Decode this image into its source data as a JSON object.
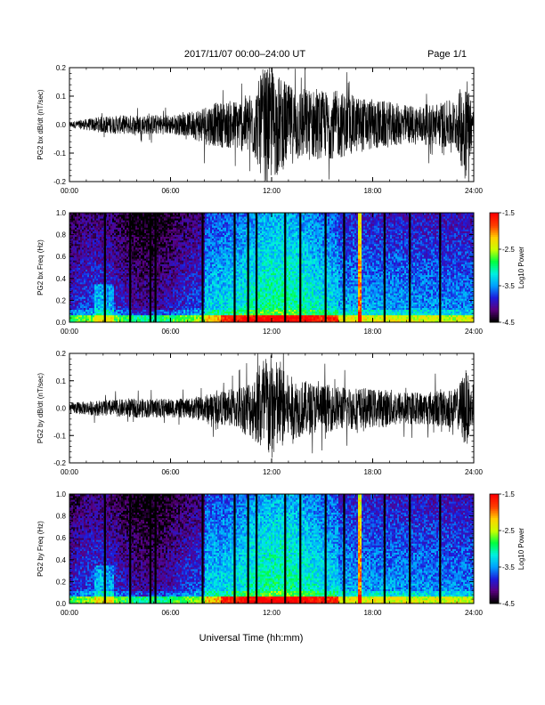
{
  "header": {
    "title": "2017/11/07  00:00–24:00 UT",
    "page": "Page 1/1"
  },
  "footer": {
    "xlabel": "Universal Time (hh:mm)"
  },
  "colors": {
    "trace": "#000000",
    "colormap": [
      "#000000",
      "#5a007f",
      "#1c1cdc",
      "#00a0ff",
      "#00f0e0",
      "#00ff40",
      "#c8ff00",
      "#ffd000",
      "#ff4000",
      "#ff0000"
    ]
  },
  "chart_data": [
    {
      "type": "line",
      "ylabel": "PG2 bx dB/dt (nT/sec)",
      "xlim": [
        0,
        24
      ],
      "ylim": [
        -0.2,
        0.2
      ],
      "xticks": [
        "00:00",
        "06:00",
        "12:00",
        "18:00",
        "24:00"
      ],
      "yticks": [
        "-0.2",
        "-0.1",
        "0.0",
        "0.1",
        "0.2"
      ],
      "grid": false,
      "envelope_hours": [
        0,
        2,
        4,
        6,
        7,
        8,
        9,
        10,
        11,
        11.5,
        12,
        13,
        14,
        15,
        16,
        17,
        18,
        19,
        20,
        21,
        22,
        23,
        23.5,
        24
      ],
      "envelope_amplitude": [
        0.01,
        0.03,
        0.035,
        0.035,
        0.04,
        0.07,
        0.08,
        0.09,
        0.12,
        0.2,
        0.2,
        0.14,
        0.13,
        0.12,
        0.12,
        0.1,
        0.09,
        0.08,
        0.07,
        0.07,
        0.08,
        0.09,
        0.2,
        0.05
      ]
    },
    {
      "type": "heatmap",
      "ylabel": "PG2 bx Freq (Hz)",
      "xlim": [
        0,
        24
      ],
      "ylim": [
        0,
        1.0
      ],
      "xticks": [
        "00:00",
        "06:00",
        "12:00",
        "18:00",
        "24:00"
      ],
      "yticks": [
        "0.0",
        "0.2",
        "0.4",
        "0.6",
        "0.8",
        "1.0"
      ],
      "colorbar": {
        "label": "Log10 Power",
        "range": [
          -4.5,
          -1.5
        ],
        "ticks": [
          "-1.5",
          "-2.5",
          "-3.5",
          "-4.5"
        ]
      },
      "gap_hours": [
        2.1,
        3.6,
        4.8,
        5.1,
        7.9,
        9.8,
        10.6,
        11.1,
        12.8,
        13.7,
        15.2,
        16.3,
        18.7,
        20.2,
        22.0
      ],
      "bright_bands": [
        {
          "hour": 17.2,
          "level": -2.2
        }
      ]
    },
    {
      "type": "line",
      "ylabel": "PG2 by dB/dt (nT/sec)",
      "xlim": [
        0,
        24
      ],
      "ylim": [
        -0.2,
        0.2
      ],
      "xticks": [
        "00:00",
        "06:00",
        "12:00",
        "18:00",
        "24:00"
      ],
      "yticks": [
        "-0.2",
        "-0.1",
        "0.0",
        "0.1",
        "0.2"
      ],
      "grid": false,
      "envelope_hours": [
        0,
        2,
        4,
        6,
        7,
        8,
        9,
        10,
        11,
        11.5,
        12,
        13,
        14,
        15,
        16,
        17,
        18,
        19,
        20,
        21,
        22,
        23,
        23.5,
        24
      ],
      "envelope_amplitude": [
        0.02,
        0.03,
        0.035,
        0.035,
        0.035,
        0.05,
        0.06,
        0.08,
        0.12,
        0.2,
        0.2,
        0.12,
        0.1,
        0.09,
        0.08,
        0.08,
        0.07,
        0.07,
        0.06,
        0.06,
        0.07,
        0.07,
        0.15,
        0.05
      ]
    },
    {
      "type": "heatmap",
      "ylabel": "PG2 by Freq (Hz)",
      "xlim": [
        0,
        24
      ],
      "ylim": [
        0,
        1.0
      ],
      "xticks": [
        "00:00",
        "06:00",
        "12:00",
        "18:00",
        "24:00"
      ],
      "yticks": [
        "0.0",
        "0.2",
        "0.4",
        "0.6",
        "0.8",
        "1.0"
      ],
      "colorbar": {
        "label": "Log10 Power",
        "range": [
          -4.5,
          -1.5
        ],
        "ticks": [
          "-1.5",
          "-2.5",
          "-3.5",
          "-4.5"
        ]
      },
      "gap_hours": [
        2.1,
        3.6,
        4.8,
        5.1,
        7.9,
        9.8,
        10.6,
        11.1,
        12.8,
        13.7,
        15.2,
        16.3,
        18.7,
        20.2,
        22.0
      ],
      "bright_bands": [
        {
          "hour": 17.2,
          "level": -2.2
        }
      ]
    }
  ]
}
